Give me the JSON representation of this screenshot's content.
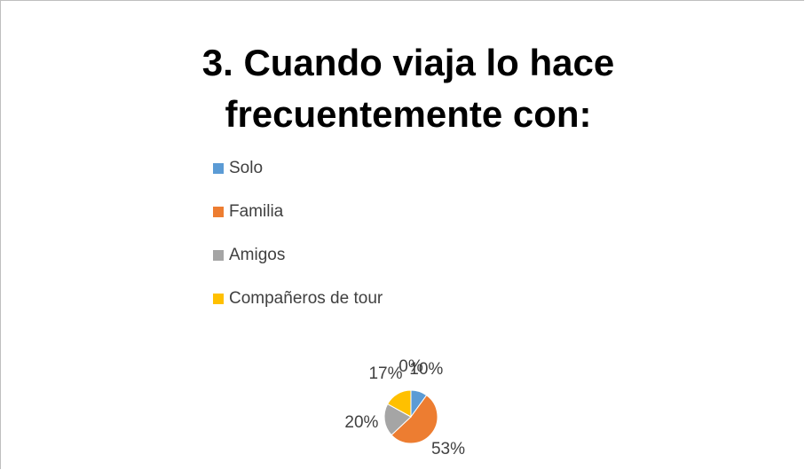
{
  "chart_data": {
    "type": "pie",
    "title": "3. Cuando viaja lo hace frecuentemente con:",
    "categories": [
      "Solo",
      "Familia",
      "Amigos",
      "Compañeros de tour",
      null
    ],
    "values": [
      10,
      53,
      20,
      17,
      0
    ],
    "value_labels": [
      "10%",
      "53%",
      "20%",
      "17%",
      "0%"
    ],
    "colors": [
      "#5b9bd5",
      "#ed7d31",
      "#a5a5a5",
      "#ffc000",
      "#4472c4"
    ],
    "legend": "top-left"
  }
}
